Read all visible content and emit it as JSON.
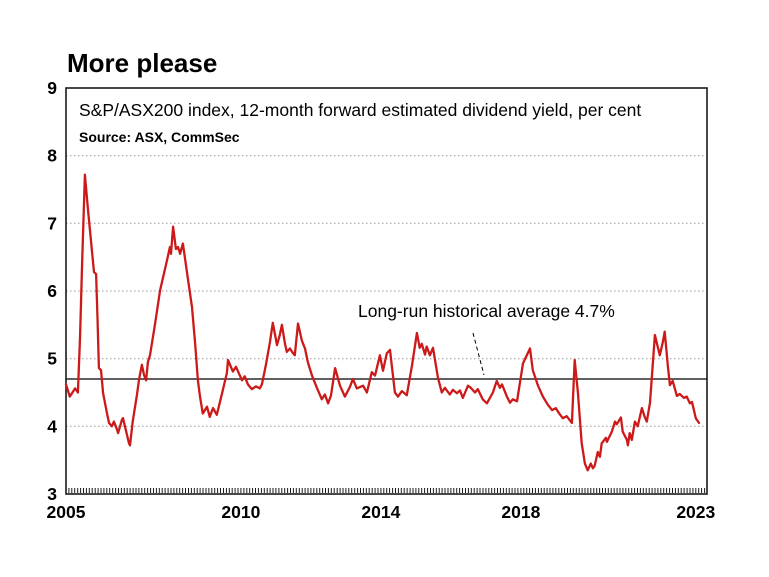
{
  "title": "More please",
  "colors": {
    "line": "#cc1a1a",
    "grid": "#999999",
    "axis": "#1a1a1a",
    "average_line": "#000000",
    "text": "#000000",
    "background": "#ffffff"
  },
  "chart_data": {
    "type": "line",
    "title": "More please",
    "subtitle": "S&P/ASX200 index, 12-month forward estimated dividend yield, per cent",
    "source": "Source: ASX, CommSec",
    "annotation": "Long-run historical average 4.7%",
    "long_run_average": 4.7,
    "legend": "none",
    "grid": "horizontal-dotted",
    "x_axis": {
      "tick_labels": [
        "2005",
        "2010",
        "2014",
        "2018",
        "2023"
      ],
      "tick_years": [
        2005,
        2010,
        2014,
        2018,
        2023
      ],
      "range": [
        2005.0,
        2023.32
      ],
      "minor_ticks": "monthly"
    },
    "y_axis": {
      "tick_labels": [
        "3",
        "4",
        "5",
        "6",
        "7",
        "8",
        "9"
      ],
      "tick_values": [
        3,
        4,
        5,
        6,
        7,
        8,
        9
      ],
      "range": [
        3,
        9
      ],
      "gridlines_at": [
        4,
        5,
        6,
        7,
        8
      ]
    },
    "series": [
      {
        "name": "S&P/ASX200 12-month forward estimated dividend yield (per cent)",
        "color": "#cc1a1a",
        "points": [
          [
            2005.0,
            4.62
          ],
          [
            2005.11,
            4.44
          ],
          [
            2005.26,
            4.56
          ],
          [
            2005.34,
            4.5
          ],
          [
            2005.4,
            5.3
          ],
          [
            2005.46,
            6.4
          ],
          [
            2005.54,
            7.72
          ],
          [
            2005.63,
            7.2
          ],
          [
            2005.74,
            6.6
          ],
          [
            2005.8,
            6.28
          ],
          [
            2005.86,
            6.25
          ],
          [
            2005.9,
            5.6
          ],
          [
            2005.94,
            4.86
          ],
          [
            2006.0,
            4.83
          ],
          [
            2006.06,
            4.49
          ],
          [
            2006.17,
            4.2
          ],
          [
            2006.23,
            4.05
          ],
          [
            2006.31,
            4.0
          ],
          [
            2006.37,
            4.07
          ],
          [
            2006.46,
            3.95
          ],
          [
            2006.49,
            3.9
          ],
          [
            2006.6,
            4.1
          ],
          [
            2006.63,
            4.12
          ],
          [
            2006.74,
            3.88
          ],
          [
            2006.8,
            3.75
          ],
          [
            2006.83,
            3.72
          ],
          [
            2006.91,
            4.08
          ],
          [
            2007.03,
            4.47
          ],
          [
            2007.09,
            4.7
          ],
          [
            2007.17,
            4.91
          ],
          [
            2007.23,
            4.76
          ],
          [
            2007.29,
            4.68
          ],
          [
            2007.34,
            4.95
          ],
          [
            2007.4,
            5.05
          ],
          [
            2007.54,
            5.5
          ],
          [
            2007.69,
            6.01
          ],
          [
            2007.89,
            6.46
          ],
          [
            2007.97,
            6.65
          ],
          [
            2008.0,
            6.55
          ],
          [
            2008.06,
            6.95
          ],
          [
            2008.14,
            6.62
          ],
          [
            2008.2,
            6.65
          ],
          [
            2008.26,
            6.55
          ],
          [
            2008.34,
            6.7
          ],
          [
            2008.49,
            6.16
          ],
          [
            2008.6,
            5.76
          ],
          [
            2008.69,
            5.23
          ],
          [
            2008.77,
            4.68
          ],
          [
            2008.83,
            4.44
          ],
          [
            2008.91,
            4.19
          ],
          [
            2009.03,
            4.29
          ],
          [
            2009.11,
            4.14
          ],
          [
            2009.2,
            4.27
          ],
          [
            2009.31,
            4.17
          ],
          [
            2009.46,
            4.49
          ],
          [
            2009.6,
            4.79
          ],
          [
            2009.63,
            4.98
          ],
          [
            2009.77,
            4.81
          ],
          [
            2009.86,
            4.88
          ],
          [
            2010.03,
            4.68
          ],
          [
            2010.11,
            4.74
          ],
          [
            2010.2,
            4.62
          ],
          [
            2010.31,
            4.55
          ],
          [
            2010.43,
            4.59
          ],
          [
            2010.54,
            4.56
          ],
          [
            2010.6,
            4.62
          ],
          [
            2010.71,
            4.9
          ],
          [
            2010.83,
            5.25
          ],
          [
            2010.91,
            5.53
          ],
          [
            2011.03,
            5.2
          ],
          [
            2011.11,
            5.35
          ],
          [
            2011.17,
            5.5
          ],
          [
            2011.26,
            5.22
          ],
          [
            2011.31,
            5.1
          ],
          [
            2011.4,
            5.15
          ],
          [
            2011.49,
            5.08
          ],
          [
            2011.54,
            5.05
          ],
          [
            2011.63,
            5.52
          ],
          [
            2011.74,
            5.27
          ],
          [
            2011.83,
            5.15
          ],
          [
            2011.91,
            4.95
          ],
          [
            2012.03,
            4.75
          ],
          [
            2012.17,
            4.57
          ],
          [
            2012.31,
            4.4
          ],
          [
            2012.4,
            4.47
          ],
          [
            2012.49,
            4.34
          ],
          [
            2012.57,
            4.45
          ],
          [
            2012.69,
            4.86
          ],
          [
            2012.83,
            4.6
          ],
          [
            2012.97,
            4.44
          ],
          [
            2013.11,
            4.58
          ],
          [
            2013.2,
            4.7
          ],
          [
            2013.31,
            4.56
          ],
          [
            2013.49,
            4.6
          ],
          [
            2013.6,
            4.5
          ],
          [
            2013.74,
            4.8
          ],
          [
            2013.83,
            4.75
          ],
          [
            2013.97,
            5.05
          ],
          [
            2014.06,
            4.82
          ],
          [
            2014.17,
            5.08
          ],
          [
            2014.26,
            5.13
          ],
          [
            2014.4,
            4.5
          ],
          [
            2014.49,
            4.44
          ],
          [
            2014.6,
            4.52
          ],
          [
            2014.74,
            4.46
          ],
          [
            2014.89,
            4.9
          ],
          [
            2015.03,
            5.38
          ],
          [
            2015.11,
            5.16
          ],
          [
            2015.17,
            5.22
          ],
          [
            2015.26,
            5.06
          ],
          [
            2015.31,
            5.18
          ],
          [
            2015.4,
            5.05
          ],
          [
            2015.49,
            5.16
          ],
          [
            2015.63,
            4.72
          ],
          [
            2015.74,
            4.5
          ],
          [
            2015.83,
            4.57
          ],
          [
            2015.97,
            4.47
          ],
          [
            2016.06,
            4.54
          ],
          [
            2016.17,
            4.49
          ],
          [
            2016.26,
            4.53
          ],
          [
            2016.34,
            4.42
          ],
          [
            2016.49,
            4.6
          ],
          [
            2016.57,
            4.57
          ],
          [
            2016.69,
            4.5
          ],
          [
            2016.77,
            4.55
          ],
          [
            2016.91,
            4.4
          ],
          [
            2017.03,
            4.34
          ],
          [
            2017.2,
            4.5
          ],
          [
            2017.31,
            4.67
          ],
          [
            2017.4,
            4.57
          ],
          [
            2017.46,
            4.62
          ],
          [
            2017.6,
            4.44
          ],
          [
            2017.69,
            4.35
          ],
          [
            2017.77,
            4.4
          ],
          [
            2017.89,
            4.37
          ],
          [
            2018.06,
            4.93
          ],
          [
            2018.17,
            5.05
          ],
          [
            2018.26,
            5.15
          ],
          [
            2018.34,
            4.83
          ],
          [
            2018.49,
            4.6
          ],
          [
            2018.63,
            4.44
          ],
          [
            2018.77,
            4.32
          ],
          [
            2018.89,
            4.24
          ],
          [
            2019.0,
            4.27
          ],
          [
            2019.11,
            4.18
          ],
          [
            2019.2,
            4.12
          ],
          [
            2019.31,
            4.15
          ],
          [
            2019.46,
            4.05
          ],
          [
            2019.54,
            4.98
          ],
          [
            2019.63,
            4.5
          ],
          [
            2019.74,
            3.75
          ],
          [
            2019.83,
            3.45
          ],
          [
            2019.91,
            3.35
          ],
          [
            2020.0,
            3.45
          ],
          [
            2020.06,
            3.38
          ],
          [
            2020.11,
            3.42
          ],
          [
            2020.2,
            3.62
          ],
          [
            2020.26,
            3.55
          ],
          [
            2020.31,
            3.75
          ],
          [
            2020.43,
            3.83
          ],
          [
            2020.46,
            3.77
          ],
          [
            2020.6,
            3.92
          ],
          [
            2020.69,
            4.07
          ],
          [
            2020.74,
            4.03
          ],
          [
            2020.86,
            4.13
          ],
          [
            2020.91,
            3.92
          ],
          [
            2021.03,
            3.8
          ],
          [
            2021.06,
            3.72
          ],
          [
            2021.11,
            3.9
          ],
          [
            2021.17,
            3.8
          ],
          [
            2021.26,
            4.07
          ],
          [
            2021.34,
            4.0
          ],
          [
            2021.46,
            4.27
          ],
          [
            2021.54,
            4.14
          ],
          [
            2021.6,
            4.07
          ],
          [
            2021.69,
            4.35
          ],
          [
            2021.83,
            5.35
          ],
          [
            2021.97,
            5.05
          ],
          [
            2022.06,
            5.25
          ],
          [
            2022.11,
            5.4
          ],
          [
            2022.2,
            4.9
          ],
          [
            2022.26,
            4.61
          ],
          [
            2022.34,
            4.67
          ],
          [
            2022.46,
            4.45
          ],
          [
            2022.54,
            4.48
          ],
          [
            2022.66,
            4.42
          ],
          [
            2022.74,
            4.44
          ],
          [
            2022.83,
            4.34
          ],
          [
            2022.89,
            4.36
          ],
          [
            2023.0,
            4.12
          ],
          [
            2023.09,
            4.05
          ]
        ]
      }
    ]
  }
}
